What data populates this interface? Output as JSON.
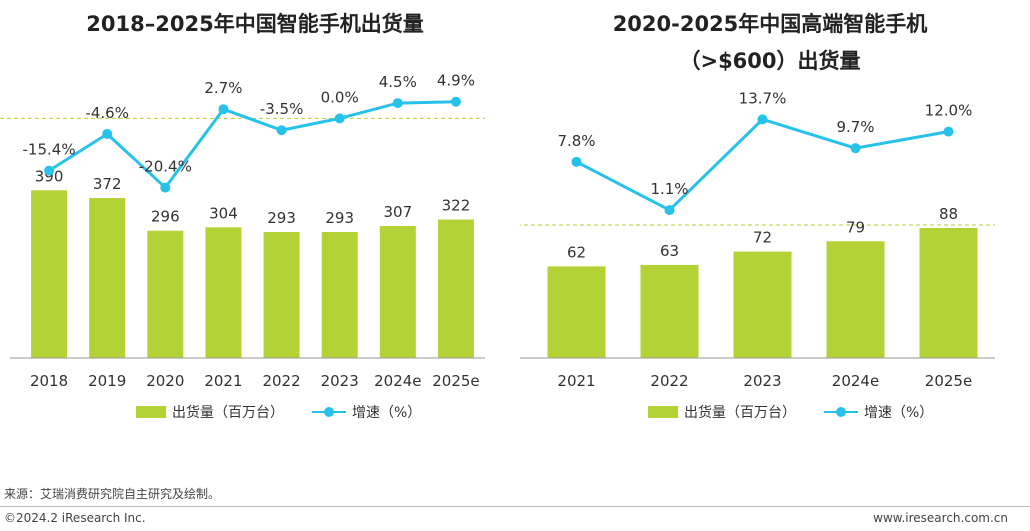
{
  "colors": {
    "bar": "#b3d236",
    "line": "#27c2ea",
    "axis": "#999999",
    "refline": "#b3d236"
  },
  "chart_data": [
    {
      "type": "bar+line",
      "title": "2018–2025年中国智能手机出货量",
      "categories": [
        "2018",
        "2019",
        "2020",
        "2021",
        "2022",
        "2023",
        "2024e",
        "2025e"
      ],
      "series": [
        {
          "name": "出货量（百万台）",
          "kind": "bar",
          "values": [
            390,
            372,
            296,
            304,
            293,
            293,
            307,
            322
          ],
          "labels": [
            "390",
            "372",
            "296",
            "304",
            "293",
            "293",
            "307",
            "322"
          ]
        },
        {
          "name": "增速（%）",
          "kind": "line",
          "values": [
            -15.4,
            -4.6,
            -20.4,
            2.7,
            -3.5,
            0.0,
            4.5,
            4.9
          ],
          "labels": [
            "-15.4%",
            "-4.6%",
            "-20.4%",
            "2.7%",
            "-3.5%",
            "0.0%",
            "4.5%",
            "4.9%"
          ]
        }
      ],
      "bar_range": [
        0,
        400
      ],
      "line_range": [
        -22,
        6
      ],
      "reference_line": 0
    },
    {
      "type": "bar+line",
      "title_line1": "2020-2025年中国高端智能手机",
      "title_line2": "（>$600）出货量",
      "categories": [
        "2021",
        "2022",
        "2023",
        "2024e",
        "2025e"
      ],
      "series": [
        {
          "name": "出货量（百万台）",
          "kind": "bar",
          "values": [
            62,
            63,
            72,
            79,
            88
          ],
          "labels": [
            "62",
            "63",
            "72",
            "79",
            "88"
          ]
        },
        {
          "name": "增速（%）",
          "kind": "line",
          "values": [
            7.8,
            1.1,
            13.7,
            9.7,
            12.0
          ],
          "labels": [
            "7.8%",
            "1.1%",
            "13.7%",
            "9.7%",
            "12.0%"
          ]
        }
      ],
      "bar_range": [
        0,
        90
      ],
      "line_range": [
        0,
        15
      ],
      "reference_line_bar": 90
    }
  ],
  "legend": {
    "bar_label": "出货量（百万台）",
    "line_label": "增速（%）"
  },
  "footer": {
    "source": "来源：艾瑞消费研究院自主研究及绘制。",
    "copyright": "©2024.2 iResearch Inc.",
    "url": "www.iresearch.com.cn"
  }
}
